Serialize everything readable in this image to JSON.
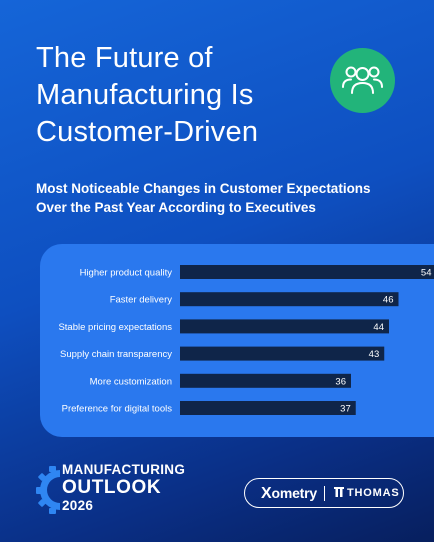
{
  "header": {
    "title_lines": [
      "The Future of",
      "Manufacturing Is",
      "Customer-Driven"
    ],
    "subtitle_lines": [
      "Most Noticeable Changes in Customer Expectations",
      "Over the Past Year According to Executives"
    ],
    "badge_icon": "users-group-icon",
    "badge_color": "#22b47a"
  },
  "chart_data": {
    "type": "bar",
    "orientation": "horizontal",
    "categories": [
      "Higher product quality",
      "Faster delivery",
      "Stable pricing expectations",
      "Supply chain transparency",
      "More customization",
      "Preference for digital tools"
    ],
    "values": [
      54,
      46,
      44,
      43,
      36,
      37
    ],
    "data_labels": [
      "54",
      "46",
      "44",
      "43",
      "36",
      "37"
    ],
    "title": "",
    "xlabel": "",
    "ylabel": "",
    "grid": false,
    "bar_color": "#0f2549",
    "panel_color": "#2a78ee"
  },
  "footer": {
    "outlook_line1": "MANUFACTURING",
    "outlook_line2": "OUTLOOK",
    "outlook_line3": "2026",
    "gear_icon": "gear-icon",
    "gear_color": "#2f86f2",
    "partner1_x": "X",
    "partner1_rest": "ometry",
    "partner2": "THOMAS",
    "partner2_icon": "thomas-pillar-icon"
  }
}
